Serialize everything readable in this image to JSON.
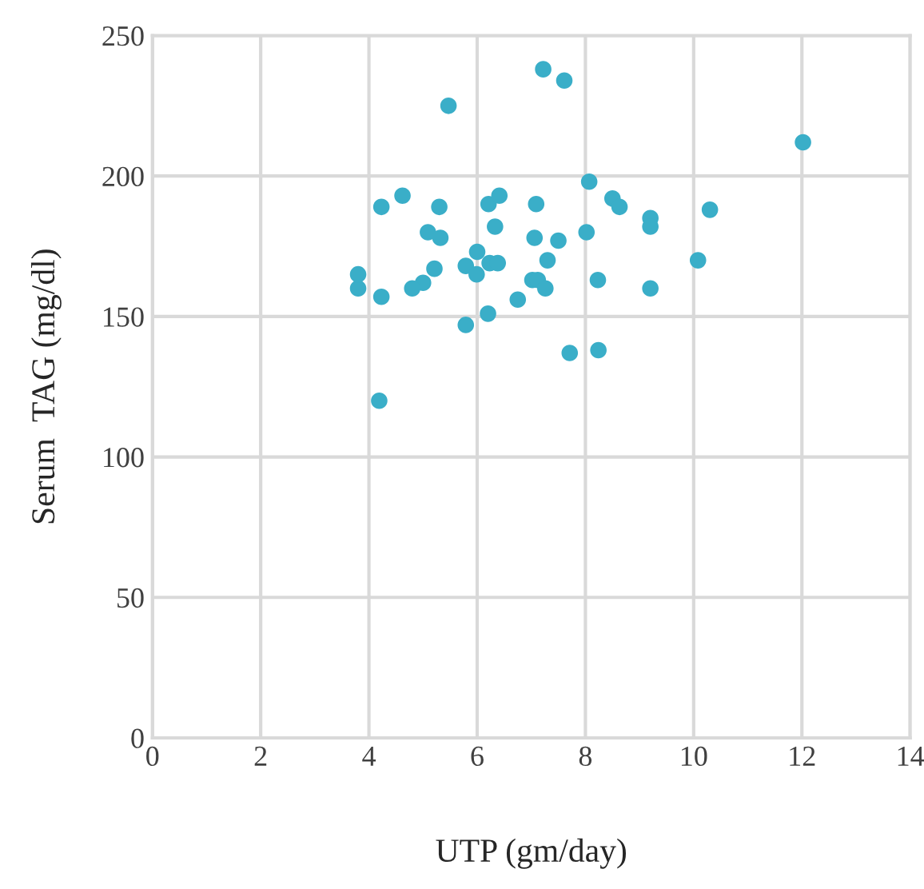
{
  "chart_data": {
    "type": "scatter",
    "xlabel": "UTP (gm/day)",
    "ylabel": "Serum  TAG (mg/dl)",
    "x": [
      3.8,
      3.8,
      4.23,
      4.19,
      4.23,
      4.62,
      5.3,
      5.09,
      5.32,
      5.21,
      5.0,
      4.8,
      5.47,
      7.22,
      7.61,
      6.0,
      5.79,
      5.99,
      6.23,
      6.38,
      5.79,
      6.2,
      6.21,
      6.41,
      6.33,
      7.09,
      7.06,
      7.5,
      7.3,
      7.02,
      7.12,
      7.26,
      6.75,
      7.71,
      8.24,
      8.23,
      8.02,
      8.07,
      8.5,
      8.63,
      9.2,
      9.2,
      9.2,
      10.08,
      12.02,
      10.3
    ],
    "series": [
      {
        "color": "#3aaec8",
        "values": [
          160,
          165,
          189,
          120,
          157,
          193,
          189,
          180,
          178,
          167,
          162,
          160,
          225,
          238,
          234,
          173,
          168,
          165,
          169,
          169,
          147,
          151,
          190,
          193,
          182,
          190,
          178,
          177,
          170,
          163,
          163,
          160,
          156,
          137,
          138,
          163,
          180,
          198,
          192,
          189,
          185,
          182,
          160,
          170,
          212,
          188
        ]
      }
    ],
    "xlim": [
      0,
      14
    ],
    "xticks": [
      0,
      2,
      4,
      6,
      8,
      10,
      12,
      14
    ],
    "ylim": [
      0,
      250
    ],
    "yticks": [
      0,
      50,
      100,
      150,
      200,
      250
    ],
    "grid": true,
    "marker": "circle"
  }
}
